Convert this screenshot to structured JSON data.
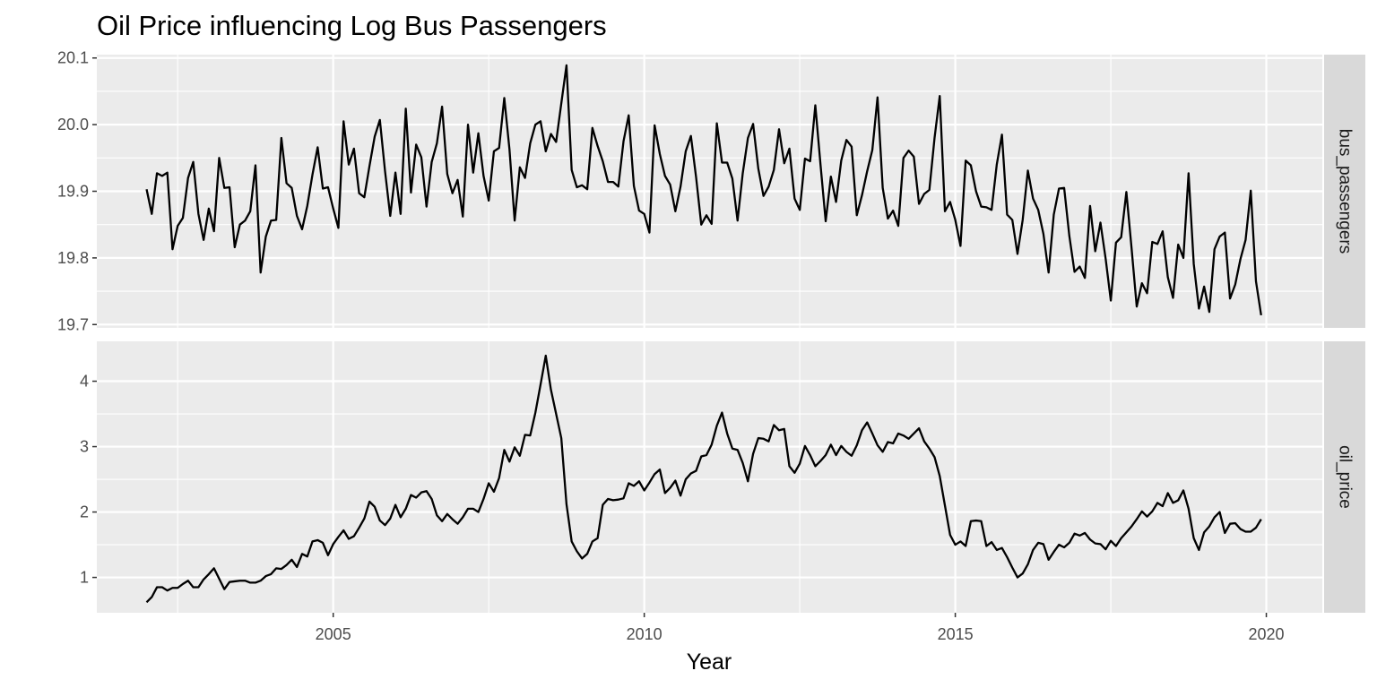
{
  "chart_data": {
    "type": "line",
    "title": "Oil Price influencing Log Bus Passengers",
    "xlabel": "Year",
    "x_start": "2002-01",
    "x_frequency": "monthly",
    "xlim": [
      2001.2,
      2020.9
    ],
    "x_ticks": [
      2005,
      2010,
      2015,
      2020
    ],
    "x_tick_labels": [
      "2005",
      "2010",
      "2015",
      "2020"
    ],
    "grid": true,
    "panels": [
      {
        "strip_label": "bus_passengers",
        "ylim": [
          19.695,
          20.105
        ],
        "y_ticks": [
          19.7,
          19.8,
          19.9,
          20.0,
          20.1
        ],
        "y_tick_labels": [
          "19.7",
          "19.8",
          "19.9",
          "20.0",
          "20.1"
        ],
        "values": [
          19.903,
          19.866,
          19.927,
          19.923,
          19.928,
          19.813,
          19.848,
          19.86,
          19.92,
          19.944,
          19.866,
          19.827,
          19.874,
          19.84,
          19.95,
          19.905,
          19.906,
          19.816,
          19.85,
          19.856,
          19.87,
          19.939,
          19.778,
          19.832,
          19.856,
          19.857,
          19.98,
          19.912,
          19.905,
          19.863,
          19.843,
          19.878,
          19.925,
          19.966,
          19.904,
          19.906,
          19.874,
          19.845,
          20.005,
          19.94,
          19.964,
          19.897,
          19.891,
          19.938,
          19.982,
          20.007,
          19.93,
          19.863,
          19.928,
          19.866,
          20.024,
          19.898,
          19.97,
          19.951,
          19.877,
          19.944,
          19.972,
          20.027,
          19.926,
          19.897,
          19.917,
          19.862,
          20.0,
          19.928,
          19.987,
          19.923,
          19.886,
          19.96,
          19.965,
          20.04,
          19.963,
          19.856,
          19.936,
          19.92,
          19.972,
          20.0,
          20.005,
          19.96,
          19.986,
          19.974,
          20.032,
          20.089,
          19.932,
          19.906,
          19.909,
          19.903,
          19.995,
          19.968,
          19.945,
          19.914,
          19.914,
          19.907,
          19.975,
          20.014,
          19.908,
          19.871,
          19.866,
          19.838,
          19.999,
          19.956,
          19.923,
          19.91,
          19.87,
          19.907,
          19.96,
          19.983,
          19.921,
          19.85,
          19.864,
          19.851,
          20.002,
          19.943,
          19.943,
          19.919,
          19.856,
          19.927,
          19.98,
          20.001,
          19.934,
          19.893,
          19.907,
          19.932,
          19.993,
          19.942,
          19.964,
          19.889,
          19.872,
          19.949,
          19.945,
          20.029,
          19.94,
          19.855,
          19.922,
          19.884,
          19.946,
          19.977,
          19.967,
          19.864,
          19.894,
          19.93,
          19.962,
          20.041,
          19.905,
          19.859,
          19.871,
          19.848,
          19.95,
          19.961,
          19.952,
          19.881,
          19.896,
          19.902,
          19.98,
          20.043,
          19.87,
          19.884,
          19.857,
          19.818,
          19.946,
          19.939,
          19.9,
          19.877,
          19.876,
          19.872,
          19.94,
          19.985,
          19.865,
          19.857,
          19.806,
          19.857,
          19.931,
          19.889,
          19.872,
          19.836,
          19.778,
          19.865,
          19.904,
          19.905,
          19.833,
          19.779,
          19.787,
          19.77,
          19.878,
          19.81,
          19.853,
          19.799,
          19.736,
          19.823,
          19.831,
          19.899,
          19.815,
          19.727,
          19.762,
          19.747,
          19.824,
          19.821,
          19.84,
          19.771,
          19.74,
          19.82,
          19.8,
          19.927,
          19.791,
          19.724,
          19.757,
          19.719,
          19.813,
          19.832,
          19.838,
          19.739,
          19.76,
          19.798,
          19.827,
          19.901,
          19.765,
          19.714
        ]
      },
      {
        "strip_label": "oil_price",
        "ylim": [
          0.46,
          4.61
        ],
        "y_ticks": [
          1,
          2,
          3,
          4
        ],
        "y_tick_labels": [
          "1",
          "2",
          "3",
          "4"
        ],
        "values": [
          0.62,
          0.7,
          0.85,
          0.85,
          0.8,
          0.84,
          0.84,
          0.9,
          0.95,
          0.85,
          0.85,
          0.97,
          1.05,
          1.14,
          0.98,
          0.82,
          0.93,
          0.94,
          0.95,
          0.95,
          0.92,
          0.92,
          0.95,
          1.02,
          1.05,
          1.14,
          1.13,
          1.19,
          1.27,
          1.16,
          1.36,
          1.32,
          1.55,
          1.57,
          1.53,
          1.34,
          1.51,
          1.62,
          1.72,
          1.59,
          1.63,
          1.76,
          1.9,
          2.16,
          2.08,
          1.87,
          1.8,
          1.9,
          2.11,
          1.92,
          2.05,
          2.26,
          2.22,
          2.3,
          2.32,
          2.2,
          1.95,
          1.86,
          1.97,
          1.89,
          1.82,
          1.92,
          2.05,
          2.05,
          2.0,
          2.2,
          2.44,
          2.31,
          2.52,
          2.95,
          2.77,
          2.99,
          2.86,
          3.18,
          3.17,
          3.52,
          3.95,
          4.39,
          3.87,
          3.5,
          3.13,
          2.12,
          1.55,
          1.4,
          1.29,
          1.36,
          1.55,
          1.6,
          2.11,
          2.2,
          2.18,
          2.19,
          2.21,
          2.44,
          2.4,
          2.47,
          2.33,
          2.45,
          2.58,
          2.65,
          2.29,
          2.37,
          2.48,
          2.25,
          2.5,
          2.59,
          2.63,
          2.85,
          2.87,
          3.03,
          3.32,
          3.52,
          3.2,
          2.97,
          2.95,
          2.75,
          2.47,
          2.89,
          3.13,
          3.12,
          3.08,
          3.33,
          3.25,
          3.27,
          2.7,
          2.6,
          2.74,
          3.01,
          2.87,
          2.7,
          2.78,
          2.87,
          3.03,
          2.87,
          3.01,
          2.92,
          2.86,
          3.02,
          3.25,
          3.37,
          3.2,
          3.02,
          2.92,
          3.07,
          3.05,
          3.2,
          3.17,
          3.12,
          3.2,
          3.28,
          3.08,
          2.97,
          2.84,
          2.55,
          2.1,
          1.65,
          1.5,
          1.55,
          1.48,
          1.86,
          1.87,
          1.86,
          1.48,
          1.54,
          1.42,
          1.45,
          1.31,
          1.15,
          1.0,
          1.06,
          1.2,
          1.42,
          1.53,
          1.51,
          1.27,
          1.39,
          1.5,
          1.46,
          1.53,
          1.67,
          1.64,
          1.68,
          1.58,
          1.52,
          1.51,
          1.43,
          1.56,
          1.48,
          1.6,
          1.69,
          1.78,
          1.89,
          2.01,
          1.93,
          2.01,
          2.14,
          2.09,
          2.29,
          2.14,
          2.18,
          2.33,
          2.05,
          1.6,
          1.42,
          1.69,
          1.78,
          1.92,
          2.0,
          1.68,
          1.82,
          1.83,
          1.74,
          1.7,
          1.7,
          1.76,
          1.89
        ]
      }
    ]
  }
}
